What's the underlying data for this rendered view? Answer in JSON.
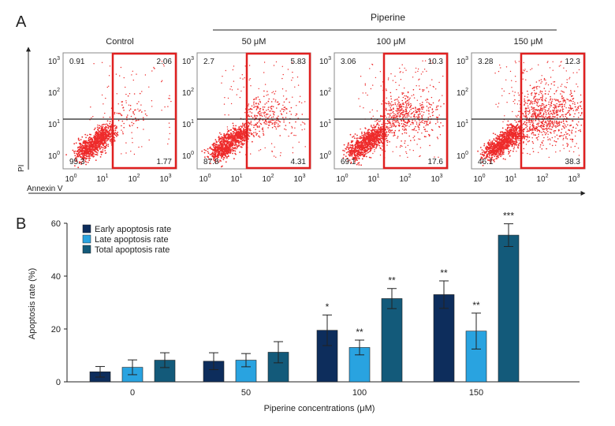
{
  "panel_a": {
    "label": "A",
    "group_label": "Piperine",
    "x_axis_label": "Annexin V",
    "y_axis_label": "PI",
    "tick_base": "10",
    "tick_exponents": [
      "0",
      "1",
      "2",
      "3"
    ],
    "plots": [
      {
        "title": "Control",
        "q_ul": "0.91",
        "q_ur": "2.06",
        "q_ll": "95.3",
        "q_lr": "1.77",
        "spread": 0.0
      },
      {
        "title": "50 μM",
        "q_ul": "2.7",
        "q_ur": "5.83",
        "q_ll": "87.8",
        "q_lr": "4.31",
        "spread": 0.25
      },
      {
        "title": "100 μM",
        "q_ul": "3.06",
        "q_ur": "10.3",
        "q_ll": "69.1",
        "q_lr": "17.6",
        "spread": 0.6
      },
      {
        "title": "150 μM",
        "q_ul": "3.28",
        "q_ur": "12.3",
        "q_ll": "46.1",
        "q_lr": "38.3",
        "spread": 1.0
      }
    ]
  },
  "panel_b": {
    "label": "B"
  },
  "colors": {
    "early": "#0d2d5c",
    "late": "#29a3e0",
    "total": "#135a7a",
    "gate": "#e02020",
    "dots": "#ee2b2b"
  },
  "chart_data": {
    "type": "bar",
    "title": "",
    "xlabel": "Piperine concentrations (μM)",
    "ylabel": "Apoptosis rate (%)",
    "ylim": [
      0,
      60
    ],
    "yticks": [
      0,
      20,
      40,
      60
    ],
    "categories": [
      "0",
      "50",
      "100",
      "150"
    ],
    "series": [
      {
        "name": "Early apoptosis rate",
        "values": [
          3.8,
          7.8,
          19.5,
          33
        ],
        "errors": [
          2,
          3.2,
          5.8,
          5.2
        ],
        "sig": [
          "",
          "",
          "*",
          "**"
        ]
      },
      {
        "name": "Late apoptosis rate",
        "values": [
          5.5,
          8.2,
          13,
          19.2
        ],
        "errors": [
          2.8,
          2.5,
          2.8,
          6.8
        ],
        "sig": [
          "",
          "",
          "**",
          "**"
        ]
      },
      {
        "name": "Total apoptosis rate",
        "values": [
          8.2,
          11.2,
          31.5,
          55.5
        ],
        "errors": [
          2.8,
          4,
          3.8,
          4.3
        ],
        "sig": [
          "",
          "",
          "**",
          "***"
        ]
      }
    ]
  }
}
